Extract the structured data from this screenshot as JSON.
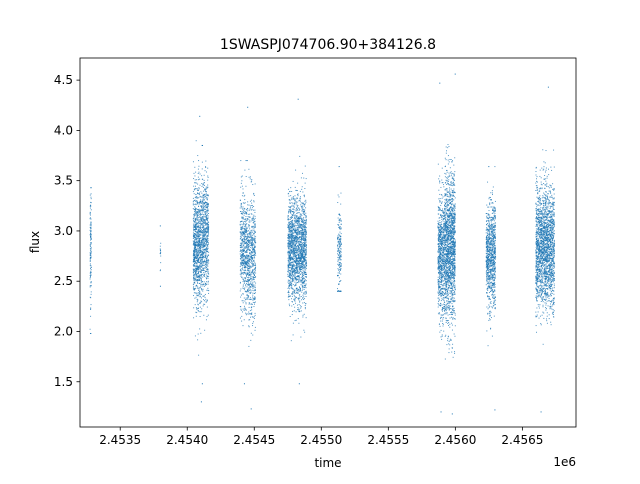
{
  "chart_data": {
    "type": "scatter",
    "title": "1SWASPJ074706.90+384126.8",
    "xlabel": "time",
    "ylabel": "flux",
    "x_offset_label": "1e6",
    "xlim": [
      2453200,
      2456900
    ],
    "ylim": [
      1.05,
      4.72
    ],
    "grid": false,
    "legend": "none",
    "marker_color": "#1f77b4",
    "x_ticks": [
      {
        "value": 2453500,
        "label": "2.4535"
      },
      {
        "value": 2454000,
        "label": "2.4540"
      },
      {
        "value": 2454500,
        "label": "2.4545"
      },
      {
        "value": 2455000,
        "label": "2.4550"
      },
      {
        "value": 2455500,
        "label": "2.4555"
      },
      {
        "value": 2456000,
        "label": "2.4560"
      },
      {
        "value": 2456500,
        "label": "2.4565"
      }
    ],
    "y_ticks": [
      {
        "value": 1.5,
        "label": "1.5"
      },
      {
        "value": 2.0,
        "label": "2.0"
      },
      {
        "value": 2.5,
        "label": "2.5"
      },
      {
        "value": 3.0,
        "label": "3.0"
      },
      {
        "value": 3.5,
        "label": "3.5"
      },
      {
        "value": 4.0,
        "label": "4.0"
      },
      {
        "value": 4.5,
        "label": "4.5"
      }
    ],
    "observing_segments": [
      {
        "t_start": 2453275,
        "t_end": 2453285,
        "flux_median": 2.85,
        "flux_spread": 0.3,
        "flux_min": 1.98,
        "flux_max": 3.43,
        "n_points": 120
      },
      {
        "t_start": 2453798,
        "t_end": 2453802,
        "flux_median": 2.75,
        "flux_spread": 0.12,
        "flux_min": 2.45,
        "flux_max": 3.05,
        "n_points": 14
      },
      {
        "t_start": 2454045,
        "t_end": 2454108,
        "flux_median": 2.85,
        "flux_spread": 0.3,
        "flux_min": 1.3,
        "flux_max": 4.14,
        "n_points": 900
      },
      {
        "t_start": 2454108,
        "t_end": 2454160,
        "flux_median": 2.95,
        "flux_spread": 0.3,
        "flux_min": 1.48,
        "flux_max": 3.85,
        "n_points": 600
      },
      {
        "t_start": 2454395,
        "t_end": 2454450,
        "flux_median": 2.8,
        "flux_spread": 0.28,
        "flux_min": 1.48,
        "flux_max": 3.7,
        "n_points": 500
      },
      {
        "t_start": 2454450,
        "t_end": 2454510,
        "flux_median": 2.75,
        "flux_spread": 0.3,
        "flux_min": 1.23,
        "flux_max": 4.23,
        "n_points": 550
      },
      {
        "t_start": 2454750,
        "t_end": 2454890,
        "flux_median": 2.8,
        "flux_spread": 0.26,
        "flux_min": 1.48,
        "flux_max": 4.31,
        "n_points": 1800
      },
      {
        "t_start": 2455120,
        "t_end": 2455150,
        "flux_median": 2.8,
        "flux_spread": 0.22,
        "flux_min": 2.4,
        "flux_max": 3.64,
        "n_points": 180
      },
      {
        "t_start": 2455870,
        "t_end": 2455920,
        "flux_median": 2.75,
        "flux_spread": 0.3,
        "flux_min": 1.2,
        "flux_max": 4.47,
        "n_points": 700
      },
      {
        "t_start": 2455920,
        "t_end": 2456000,
        "flux_median": 2.85,
        "flux_spread": 0.36,
        "flux_min": 1.18,
        "flux_max": 4.56,
        "n_points": 1500
      },
      {
        "t_start": 2456230,
        "t_end": 2456300,
        "flux_median": 2.75,
        "flux_spread": 0.26,
        "flux_min": 1.22,
        "flux_max": 3.64,
        "n_points": 900
      },
      {
        "t_start": 2456600,
        "t_end": 2456740,
        "flux_median": 2.85,
        "flux_spread": 0.3,
        "flux_min": 1.2,
        "flux_max": 4.43,
        "n_points": 2000
      }
    ]
  }
}
